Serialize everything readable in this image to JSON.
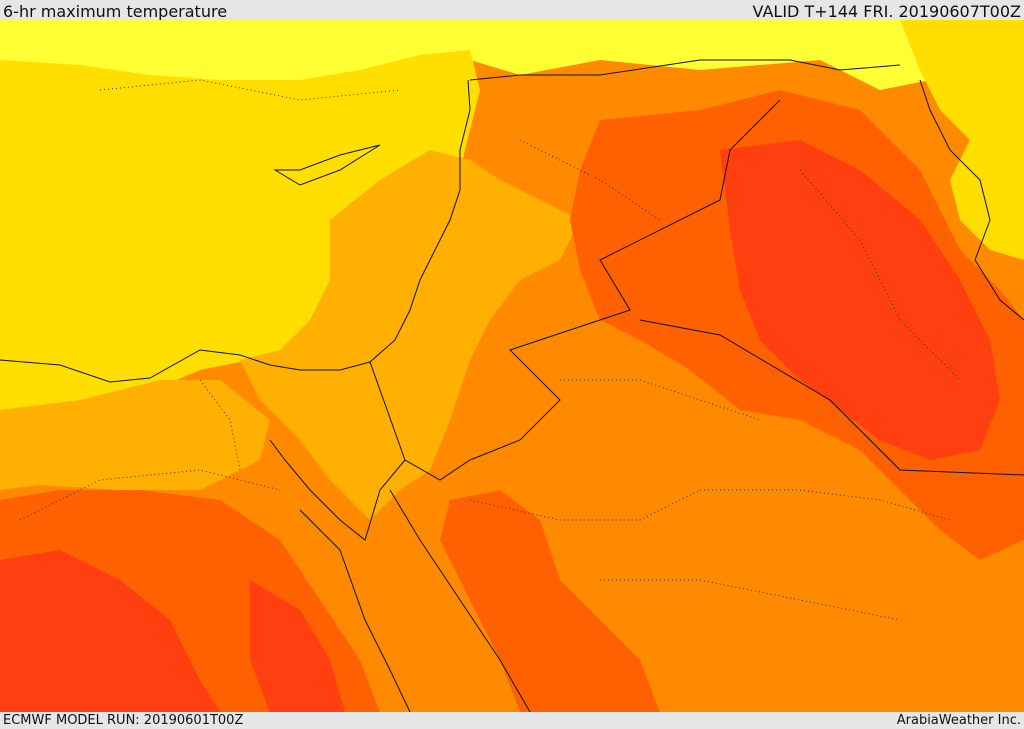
{
  "header": {
    "title": "6-hr maximum temperature",
    "valid": "VALID T+144 FRI. 20190607T00Z"
  },
  "footer": {
    "model_run": "ECMWF MODEL RUN: 20190601T00Z",
    "credit": "ArabiaWeather Inc."
  },
  "palette": {
    "sea_yellow": "#ffde00",
    "light_yellow": "#ffff33",
    "orange_light": "#ffb000",
    "orange": "#ff8a00",
    "orange_dark": "#ff6000",
    "red_orange": "#ff3f10"
  }
}
